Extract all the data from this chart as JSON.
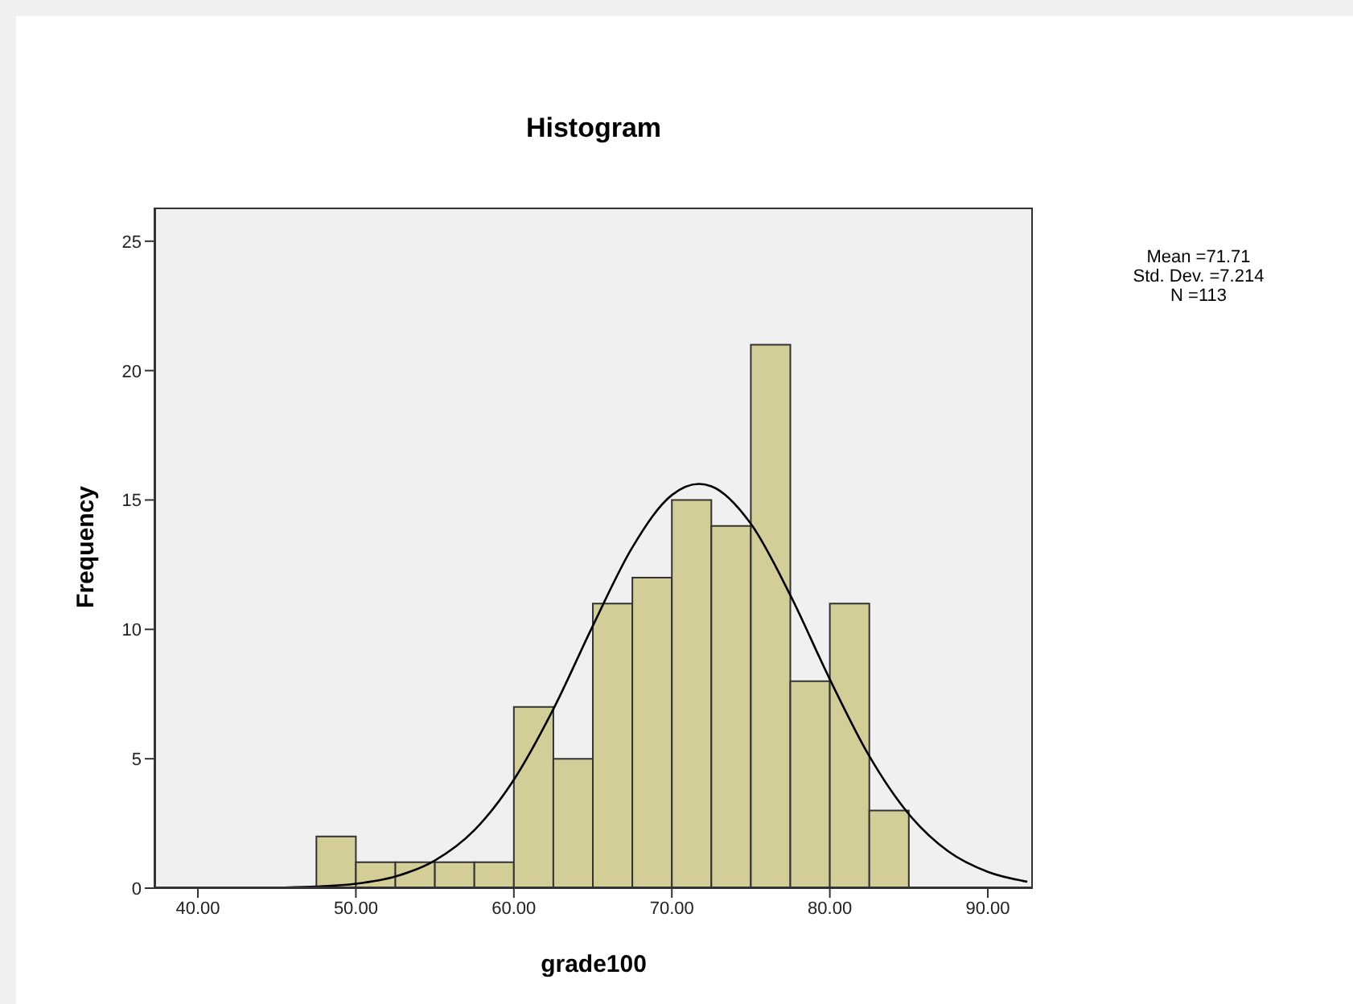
{
  "chart_data": {
    "type": "histogram",
    "title": "Histogram",
    "xlabel": "grade100",
    "ylabel": "Frequency",
    "annotations": [
      "Mean =71.71",
      "Std. Dev. =7.214",
      "N =113"
    ],
    "bins": [
      47.5,
      50,
      52.5,
      55,
      57.5,
      60,
      62.5,
      65,
      67.5,
      70,
      72.5,
      75,
      77.5,
      80,
      82.5,
      85
    ],
    "values": [
      2,
      1,
      1,
      1,
      1,
      7,
      5,
      11,
      12,
      15,
      14,
      21,
      8,
      11,
      3
    ],
    "color": "#d3ce97",
    "series": [
      {
        "type": "line",
        "color": "#000000",
        "x": [
          40,
          42.5,
          45,
          47.5,
          50,
          52.5,
          55,
          57.5,
          60,
          62.5,
          65,
          67.5,
          70,
          71.71,
          72.5,
          75,
          77.5,
          80,
          82.5,
          85,
          87.5,
          90,
          92.5
        ],
        "values": [
          0,
          0,
          0.02,
          0.06,
          0.17,
          0.45,
          1.07,
          2.24,
          4.19,
          6.92,
          10.14,
          13.17,
          15.19,
          15.62,
          15.53,
          14.08,
          11.32,
          8.07,
          5.1,
          2.86,
          1.42,
          0.63,
          0.25
        ]
      }
    ],
    "xlim": [
      37.25,
      92.85
    ],
    "ylim": [
      0,
      26.3
    ],
    "xticks": [
      {
        "value": 40,
        "label": "40.00"
      },
      {
        "value": 50,
        "label": "50.00"
      },
      {
        "value": 60,
        "label": "60.00"
      },
      {
        "value": 70,
        "label": "70.00"
      },
      {
        "value": 80,
        "label": "80.00"
      },
      {
        "value": 90,
        "label": "90.00"
      }
    ],
    "yticks": [
      0,
      5,
      10,
      15,
      20,
      25
    ],
    "grid": false
  }
}
